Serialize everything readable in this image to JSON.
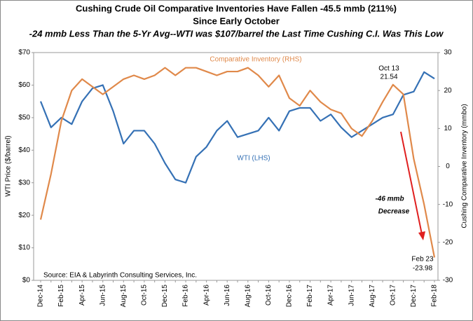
{
  "chart_data": {
    "type": "line",
    "title": "Cushing Crude Oil  Comparative Inventories Have Fallen -45.5 mmb (211%)",
    "subtitle": [
      "Since Early October",
      "-24 mmb Less Than the 5-Yr Avg--WTI was $107/barrel the Last Time Cushing C.I. Was This Low"
    ],
    "ylabel": "WTI Price ($/barrel)",
    "y2label": "Cushing Comparative Inventory (mmbo)",
    "categories": [
      "Dec-14",
      null,
      "Feb-15",
      null,
      "Apr-15",
      null,
      "Jun-15",
      null,
      "Aug-15",
      null,
      "Oct-15",
      null,
      "Dec-15",
      null,
      "Feb-16",
      null,
      "Apr-16",
      null,
      "Jun-16",
      null,
      "Aug-16",
      null,
      "Oct-16",
      null,
      "Dec-16",
      null,
      "Feb-17",
      null,
      "Apr-17",
      null,
      "Jun-17",
      null,
      "Aug-17",
      null,
      "Oct-17",
      null,
      "Dec-17",
      null,
      "Feb-18"
    ],
    "series": [
      {
        "name": "WTI (LHS)",
        "color": "#3571b5",
        "axis": "y",
        "values": [
          55,
          47,
          50,
          48,
          55,
          59,
          60,
          52,
          42,
          46,
          46,
          42,
          36,
          31,
          30,
          38,
          41,
          46,
          49,
          44,
          45,
          46,
          50,
          46,
          52,
          53,
          53,
          49,
          51,
          47,
          44,
          46,
          48,
          50,
          51,
          57,
          58,
          64,
          62
        ]
      },
      {
        "name": "Comparative Inventory (RHS)",
        "color": "#e0894a",
        "axis": "y2",
        "values": [
          -14,
          -2,
          12,
          20,
          23,
          21,
          19,
          21,
          23,
          24,
          23,
          24,
          26,
          24,
          26,
          26,
          25,
          24,
          25,
          25,
          26,
          24,
          21,
          24,
          18,
          16,
          20,
          17,
          15,
          14,
          10,
          8,
          12,
          17,
          21.54,
          19,
          2,
          -10,
          -23.98
        ]
      }
    ],
    "ylim": [
      0,
      70
    ],
    "yticks": [
      {
        "value": 0,
        "label": "$0"
      },
      {
        "value": 10,
        "label": "$10"
      },
      {
        "value": 20,
        "label": "$20"
      },
      {
        "value": 30,
        "label": "$30"
      },
      {
        "value": 40,
        "label": "$40"
      },
      {
        "value": 50,
        "label": "$50"
      },
      {
        "value": 60,
        "label": "$60"
      },
      {
        "value": 70,
        "label": "$70"
      }
    ],
    "y2lim": [
      -30,
      30
    ],
    "y2ticks": [
      -30,
      -20,
      -10,
      0,
      10,
      20,
      30
    ],
    "annotations": [
      "Oct 13",
      "21.54",
      "-46 mmb",
      "Decrease",
      "Feb 23",
      "-23.98",
      "Source:  EIA & Labyrinth Consulting Services, Inc."
    ]
  }
}
